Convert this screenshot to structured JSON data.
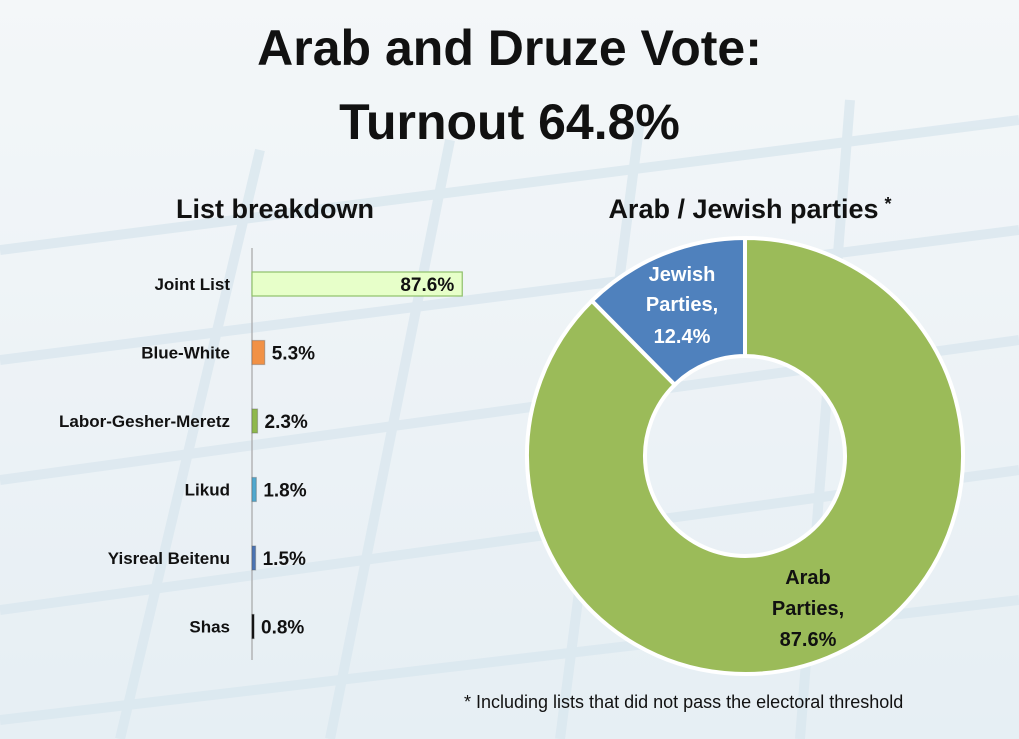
{
  "title_line1": "Arab and Druze Vote:",
  "title_line2": "Turnout 64.8%",
  "footnote": "* Including lists that did not pass the electoral threshold",
  "chart_data": [
    {
      "type": "bar",
      "orientation": "horizontal",
      "title": "List breakdown",
      "categories": [
        "Joint List",
        "Blue-White",
        "Labor-Gesher-Meretz",
        "Likud",
        "Yisreal Beitenu",
        "Shas"
      ],
      "values": [
        87.6,
        5.3,
        2.3,
        1.8,
        1.5,
        0.8
      ],
      "value_labels": [
        "87.6%",
        "5.3%",
        "2.3%",
        "1.8%",
        "1.5%",
        "0.8%"
      ],
      "colors": [
        "#e7ffc9",
        "#f19145",
        "#8fb84c",
        "#4fa8cf",
        "#4a73b3",
        "#1a1a1a"
      ],
      "xlim": [
        0,
        100
      ]
    },
    {
      "type": "pie",
      "style": "donut",
      "title": "Arab / Jewish parties",
      "title_mark": "*",
      "slices": [
        {
          "label_line1": "Jewish",
          "label_line2": "Parties,",
          "value_label": "12.4%",
          "value": 12.4,
          "color": "#4f81bd"
        },
        {
          "label_line1": "Arab",
          "label_line2": "Parties,",
          "value_label": "87.6%",
          "value": 87.6,
          "color": "#9bbb59"
        }
      ]
    }
  ]
}
